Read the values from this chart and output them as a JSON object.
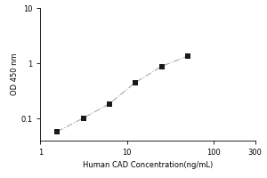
{
  "x_values": [
    1.563,
    3.125,
    6.25,
    12.5,
    25,
    50
  ],
  "y_values": [
    0.058,
    0.102,
    0.185,
    0.45,
    0.88,
    1.35
  ],
  "x_label": "Human CAD Concentration(ng/mL)",
  "y_label": "OD 450 nm",
  "x_lim": [
    1,
    300
  ],
  "y_lim": [
    0.04,
    10
  ],
  "x_ticks": [
    1,
    10,
    100,
    300
  ],
  "x_tick_labels": [
    "1",
    "10",
    "100",
    "300"
  ],
  "y_ticks": [
    0.1,
    1,
    10
  ],
  "y_tick_labels": [
    "0.1",
    "1",
    "10"
  ],
  "marker": "s",
  "marker_color": "#1a1a1a",
  "marker_size": 4,
  "line_style": "-.",
  "line_color": "#aaaaaa",
  "line_width": 0.8,
  "bg_color": "#ffffff",
  "label_fontsize": 6,
  "tick_fontsize": 6,
  "ylabel_fontsize": 6
}
